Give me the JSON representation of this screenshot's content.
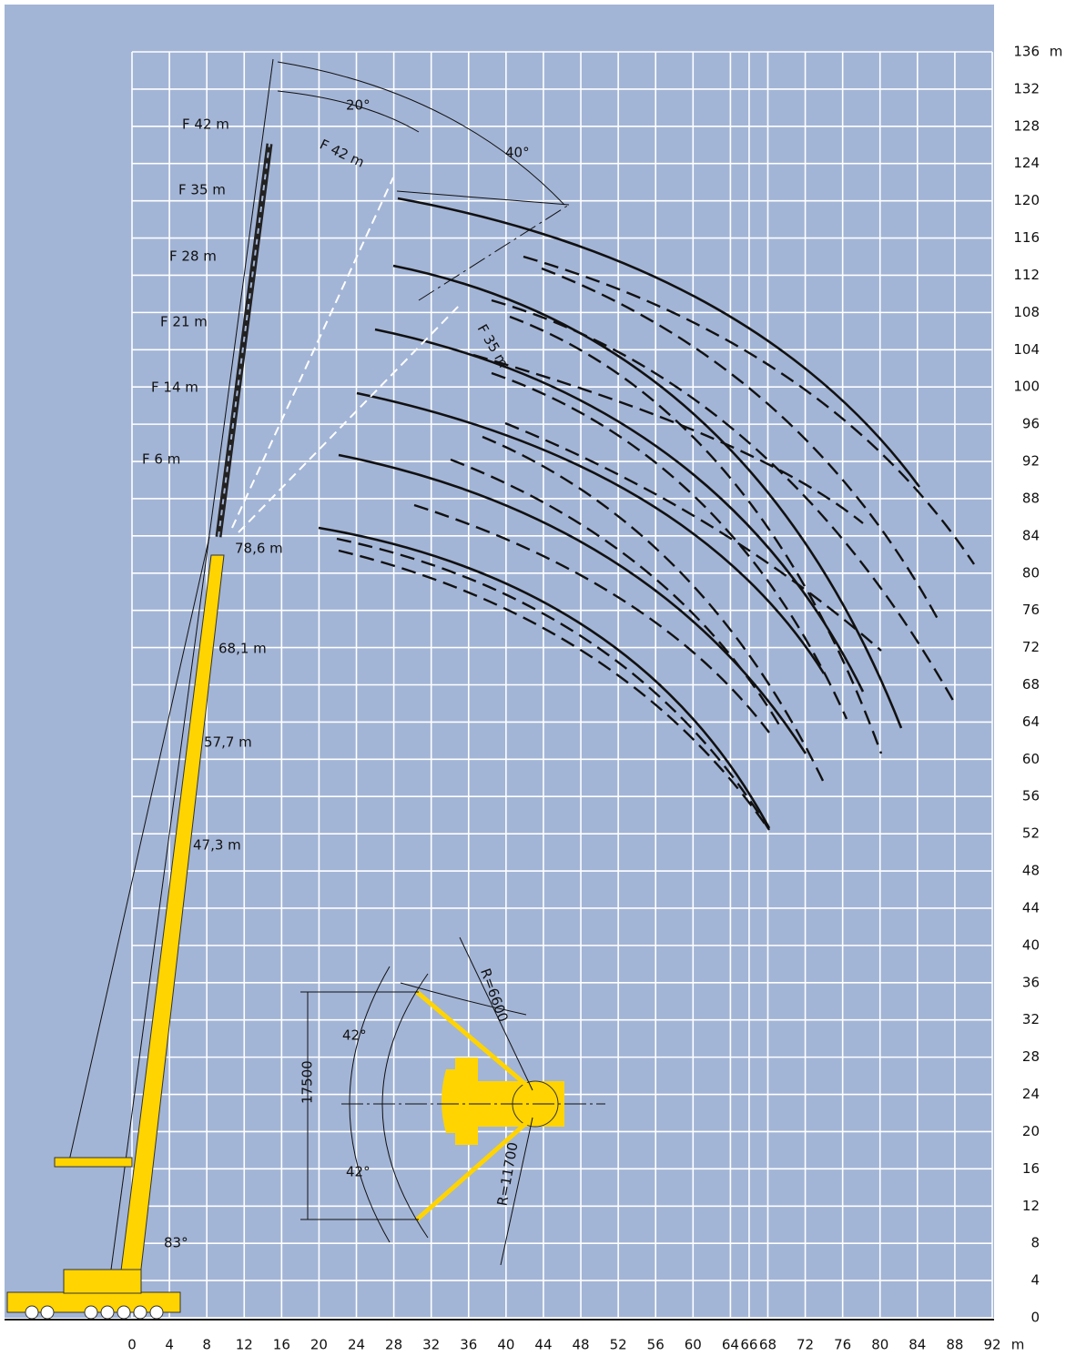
{
  "chart_data": {
    "type": "range_diagram",
    "x_unit": "m",
    "y_unit": "m",
    "xlim": [
      0,
      92
    ],
    "ylim": [
      0,
      136
    ],
    "xticks": [
      0,
      4,
      8,
      12,
      16,
      20,
      24,
      28,
      32,
      36,
      40,
      44,
      48,
      52,
      56,
      60,
      64,
      66,
      68,
      72,
      76,
      80,
      84,
      88,
      92
    ],
    "yticks": [
      0,
      4,
      8,
      12,
      16,
      20,
      24,
      28,
      32,
      36,
      40,
      44,
      48,
      52,
      56,
      60,
      64,
      68,
      72,
      76,
      80,
      84,
      88,
      92,
      96,
      100,
      104,
      108,
      112,
      116,
      120,
      124,
      128,
      132,
      136
    ],
    "grid": true,
    "annotations": [
      "F 42  m",
      "F 35 m",
      "F 28  m",
      "F 21  m",
      "F 14  m",
      "F 6 m",
      "78,6 m",
      "68,1 m",
      "57,7 m",
      "47,3 m",
      "20°",
      "40°",
      "F 42 m",
      "F 35 m",
      "83°",
      "42°",
      "42°",
      "17500",
      "R=6600",
      "R=11700"
    ]
  }
}
